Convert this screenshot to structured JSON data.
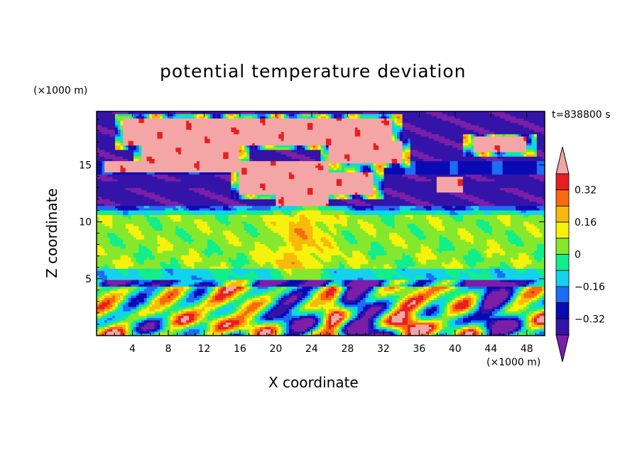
{
  "chart_data": {
    "type": "heatmap",
    "title": "potential temperature deviation",
    "xlabel": "X coordinate",
    "ylabel": "Z coordinate",
    "x_unit": "(×1000 m)",
    "y_unit": "(×1000 m)",
    "time_label": "t=838800 s",
    "xlim": [
      0,
      50
    ],
    "ylim": [
      0,
      19.7
    ],
    "x_ticks": [
      4,
      8,
      12,
      16,
      20,
      24,
      28,
      32,
      36,
      40,
      44,
      48
    ],
    "y_ticks": [
      5,
      10,
      15
    ],
    "colorbar": {
      "levels": [
        -0.4,
        -0.32,
        -0.24,
        -0.16,
        -0.08,
        0,
        0.08,
        0.16,
        0.24,
        0.32,
        0.4
      ],
      "labels": [
        "0.32",
        "0.16",
        "0",
        "−0.16",
        "−0.32"
      ],
      "label_values": [
        0.32,
        0.16,
        0,
        -0.16,
        -0.32
      ],
      "colors": [
        "#7b1fa8",
        "#3414a8",
        "#0a0ab4",
        "#1c6cf4",
        "#12d2ee",
        "#12ee8a",
        "#86e82c",
        "#f6f20c",
        "#f8b80c",
        "#f86a10",
        "#e81e20",
        "#f4a6a6"
      ],
      "extend": "both"
    },
    "regions": {
      "lower_layer_z": [
        0,
        5
      ],
      "mid_layer_z": [
        5,
        11.5
      ],
      "upper_layer_z": [
        11.5,
        19.7
      ]
    }
  }
}
